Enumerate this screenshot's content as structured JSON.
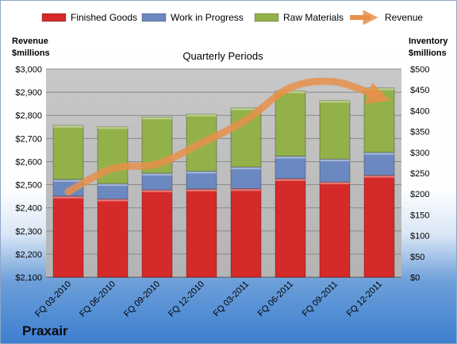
{
  "company": "Praxair",
  "chart_data": {
    "type": "bar",
    "stacked": true,
    "title": "Quarterly Periods",
    "categories": [
      "FQ 03-2010",
      "FQ 06-2010",
      "FQ 09-2010",
      "FQ 12-2010",
      "FQ 03-2011",
      "FQ 06-2011",
      "FQ 09-2011",
      "FQ 12-2011"
    ],
    "series": [
      {
        "name": "Finished Goods",
        "color": "#d42a2a",
        "axis": "right",
        "values": [
          195,
          188,
          210,
          212,
          213,
          237,
          229,
          245
        ]
      },
      {
        "name": "Work in Progress",
        "color": "#6b89c0",
        "axis": "right",
        "values": [
          40,
          37,
          40,
          43,
          52,
          54,
          55,
          55
        ]
      },
      {
        "name": "Raw Materials",
        "color": "#93b14a",
        "axis": "right",
        "values": [
          130,
          137,
          135,
          137,
          142,
          157,
          141,
          155
        ]
      }
    ],
    "line_series": {
      "name": "Revenue",
      "color": "#e8904a",
      "axis": "left",
      "values": [
        2470,
        2570,
        2590,
        2680,
        2780,
        2920,
        2945,
        2880
      ]
    },
    "left_axis": {
      "label_line1": "Revenue",
      "label_line2": "$millions",
      "ylim": [
        2100,
        3000
      ],
      "ticks": [
        "$2,100",
        "$2,200",
        "$2,300",
        "$2,400",
        "$2,500",
        "$2,600",
        "$2,700",
        "$2,800",
        "$2,900",
        "$3,000"
      ]
    },
    "right_axis": {
      "label_line1": "Inventory",
      "label_line2": "$millions",
      "ylim": [
        0,
        500
      ],
      "ticks": [
        "$0",
        "$50",
        "$100",
        "$150",
        "$200",
        "$250",
        "$300",
        "$350",
        "$400",
        "$450",
        "$500"
      ]
    },
    "legend_position": "top",
    "grid": true
  }
}
